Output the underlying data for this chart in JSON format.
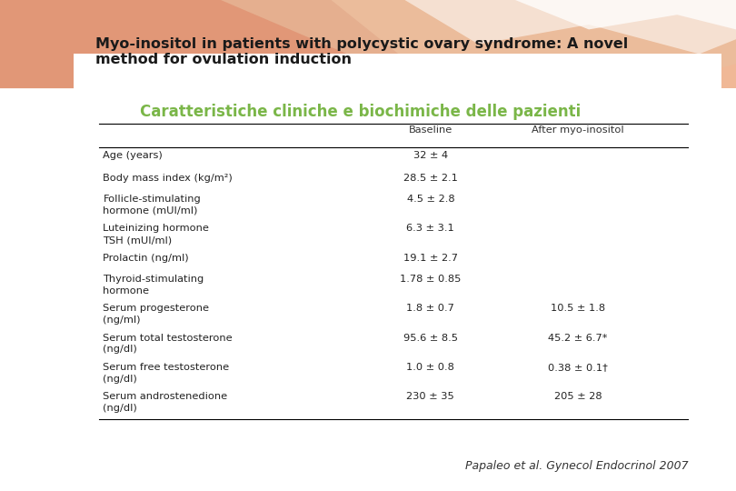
{
  "bg_color": "#ffffff",
  "slide_title_line1": "Myo-inositol in patients with polycystic ovary syndrome: A novel",
  "slide_title_line2": "method for ovulation induction",
  "slide_title_color": "#1a1a1a",
  "slide_title_fontsize": 11.5,
  "table_title": "Caratteristiche cliniche e biochimiche delle pazienti",
  "table_title_color": "#7ab648",
  "table_title_fontsize": 12,
  "col_headers": [
    "",
    "Baseline",
    "After myo-inositol"
  ],
  "rows": [
    [
      "Age (years)",
      "32 ± 4",
      ""
    ],
    [
      "Body mass index (kg/m²)",
      "28.5 ± 2.1",
      ""
    ],
    [
      "Follicle-stimulating\nhormone (mUI/ml)",
      "4.5 ± 2.8",
      ""
    ],
    [
      "Luteinizing hormone\nTSH (mUI/ml)",
      "6.3 ± 3.1",
      ""
    ],
    [
      "Prolactin (ng/ml)",
      "19.1 ± 2.7",
      ""
    ],
    [
      "Thyroid-stimulating\nhormone",
      "1.78 ± 0.85",
      ""
    ],
    [
      "Serum progesterone\n(ng/ml)",
      "1.8 ± 0.7",
      "10.5 ± 1.8"
    ],
    [
      "Serum total testosterone\n(ng/dl)",
      "95.6 ± 8.5",
      "45.2 ± 6.7*"
    ],
    [
      "Serum free testosterone\n(ng/dl)",
      "1.0 ± 0.8",
      "0.38 ± 0.1†"
    ],
    [
      "Serum androstenedione\n(ng/dl)",
      "230 ± 35",
      "205 ± 28"
    ]
  ],
  "citation": "Papaleo et al. Gynecol Endocrinol 2007",
  "citation_fontsize": 9,
  "table_fontsize": 8.2,
  "header_bg": "#f0b896",
  "wave1_color": "#e8a070",
  "wave2_color": "#f8d0b0",
  "white_wave_color": "#ffffff"
}
